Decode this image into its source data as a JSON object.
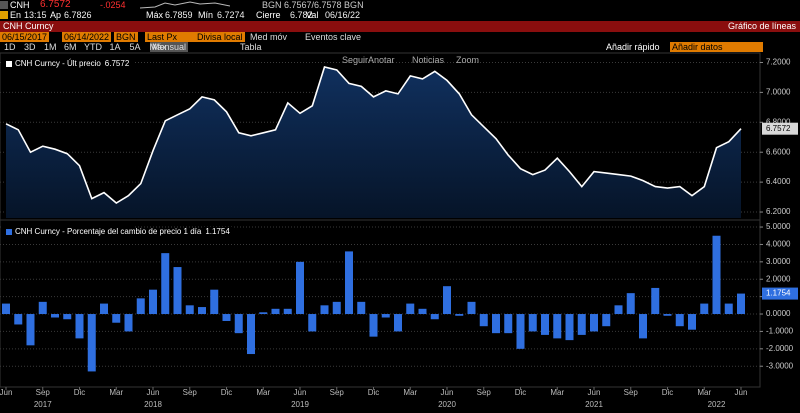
{
  "header": {
    "ticker": "CNH",
    "price": "6.7572",
    "change": "-.0254",
    "quote": "BGN 6.7567/6.7578 BGN",
    "stats": [
      {
        "label": "En",
        "value": "13:15"
      },
      {
        "label": "Ap",
        "value": "6.7826"
      },
      {
        "label": "Máx",
        "value": "6.7859"
      },
      {
        "label": "Mín",
        "value": "6.7274"
      },
      {
        "label": "Cierre",
        "value": "6.782"
      },
      {
        "label": "Val",
        "value": "06/16/22"
      }
    ],
    "security": "CNH Curncy",
    "view": "Gráfico de líneas"
  },
  "settings": {
    "start_date": "06/15/2017",
    "end_date": "06/14/2022",
    "source": "BGN",
    "field": "Last Px",
    "currency": "Divisa local",
    "moving_average": "Med móv",
    "events": "Eventos clave"
  },
  "toolbar": {
    "ranges": [
      "1D",
      "3D",
      "1M",
      "6M",
      "YTD",
      "1A",
      "5A",
      "Máx"
    ],
    "frequency": "Mensual",
    "table": "Tabla",
    "quick_add": "Añadir rápido",
    "add_data": "Añadir datos",
    "tools": [
      "Seguir",
      "Anotar",
      "Noticias",
      "Zoom"
    ]
  },
  "chart_data": [
    {
      "type": "line",
      "grid": true,
      "series": [
        {
          "name": "CNH Curncy - Últ precio",
          "color": "#ffffff",
          "values": [
            6.79,
            6.75,
            6.6,
            6.64,
            6.62,
            6.59,
            6.51,
            6.29,
            6.33,
            6.26,
            6.31,
            6.39,
            6.61,
            6.81,
            6.85,
            6.89,
            6.97,
            6.95,
            6.87,
            6.73,
            6.71,
            6.73,
            6.75,
            6.93,
            6.86,
            6.91,
            7.17,
            7.15,
            7.06,
            7.04,
            6.97,
            7.01,
            6.99,
            7.11,
            7.09,
            7.14,
            7.08,
            6.99,
            6.85,
            6.77,
            6.69,
            6.58,
            6.49,
            6.45,
            6.48,
            6.56,
            6.47,
            6.37,
            6.47,
            6.46,
            6.45,
            6.44,
            6.41,
            6.37,
            6.36,
            6.37,
            6.31,
            6.37,
            6.63,
            6.67,
            6.7572
          ]
        }
      ],
      "ylim": [
        6.16,
        7.25
      ],
      "yticks": [
        {
          "value": 6.2,
          "label": "6.2000"
        },
        {
          "value": 6.4,
          "label": "6.4000"
        },
        {
          "value": 6.6,
          "label": "6.6000"
        },
        {
          "value": 6.8,
          "label": "6.8000"
        },
        {
          "value": 7.0,
          "label": "7.0000"
        },
        {
          "value": 7.2,
          "label": "7.2000"
        }
      ]
    },
    {
      "type": "bar",
      "grid": true,
      "categories": [
        "Jun",
        null,
        null,
        "Sep",
        null,
        null,
        "Dic",
        null,
        null,
        "Mar",
        null,
        null,
        "Jun",
        null,
        null,
        "Sep",
        null,
        null,
        "Dic",
        null,
        null,
        "Mar",
        null,
        null,
        "Jun",
        null,
        null,
        "Sep",
        null,
        null,
        "Dic",
        null,
        null,
        "Mar",
        null,
        null,
        "Jun",
        null,
        null,
        "Sep",
        null,
        null,
        "Dic",
        null,
        null,
        "Mar",
        null,
        null,
        "Jun",
        null,
        null,
        "Sep",
        null,
        null,
        "Dic",
        null,
        null,
        "Mar",
        null,
        null,
        "Jun"
      ],
      "x_years": [
        null,
        null,
        null,
        "2017",
        null,
        null,
        null,
        null,
        null,
        null,
        null,
        null,
        "2018",
        null,
        null,
        null,
        null,
        null,
        null,
        null,
        null,
        null,
        null,
        null,
        "2019",
        null,
        null,
        null,
        null,
        null,
        null,
        null,
        null,
        null,
        null,
        null,
        "2020",
        null,
        null,
        null,
        null,
        null,
        null,
        null,
        null,
        null,
        null,
        null,
        "2021",
        null,
        null,
        null,
        null,
        null,
        null,
        null,
        null,
        null,
        "2022",
        null,
        null
      ],
      "series": [
        {
          "name": "CNH Curncy - Porcentaje del cambio de precio 1 día",
          "color": "#2f6fe0",
          "values": [
            0.6,
            -0.6,
            -1.8,
            0.7,
            -0.2,
            -0.3,
            -1.4,
            -3.3,
            0.6,
            -0.5,
            -1.0,
            0.9,
            1.4,
            3.5,
            2.7,
            0.5,
            0.4,
            1.4,
            -0.4,
            -1.1,
            -2.3,
            0.1,
            0.3,
            0.3,
            3.0,
            -1.0,
            0.5,
            0.7,
            3.6,
            0.7,
            -1.3,
            -0.2,
            -1.0,
            0.6,
            0.3,
            -0.3,
            1.6,
            -0.1,
            0.7,
            -0.7,
            -1.1,
            -1.1,
            -2.0,
            -1.0,
            -1.2,
            -1.4,
            -1.5,
            -1.2,
            -1.0,
            -0.7,
            0.5,
            1.2,
            -1.4,
            1.5,
            -0.1,
            -0.7,
            -0.9,
            0.6,
            4.5,
            0.6,
            1.1754
          ]
        }
      ],
      "ylim": [
        -4.08,
        5.29
      ],
      "yticks": [
        {
          "value": -3,
          "label": "-3.0000"
        },
        {
          "value": -2,
          "label": "-2.0000"
        },
        {
          "value": -1,
          "label": "-1.0000"
        },
        {
          "value": 0,
          "label": "0.0000"
        },
        {
          "value": 1,
          "label": "1.0000"
        },
        {
          "value": 2,
          "label": "2.0000"
        },
        {
          "value": 3,
          "label": "3.0000"
        },
        {
          "value": 4,
          "label": "4.0000"
        },
        {
          "value": 5,
          "label": "5.0000"
        }
      ]
    }
  ]
}
